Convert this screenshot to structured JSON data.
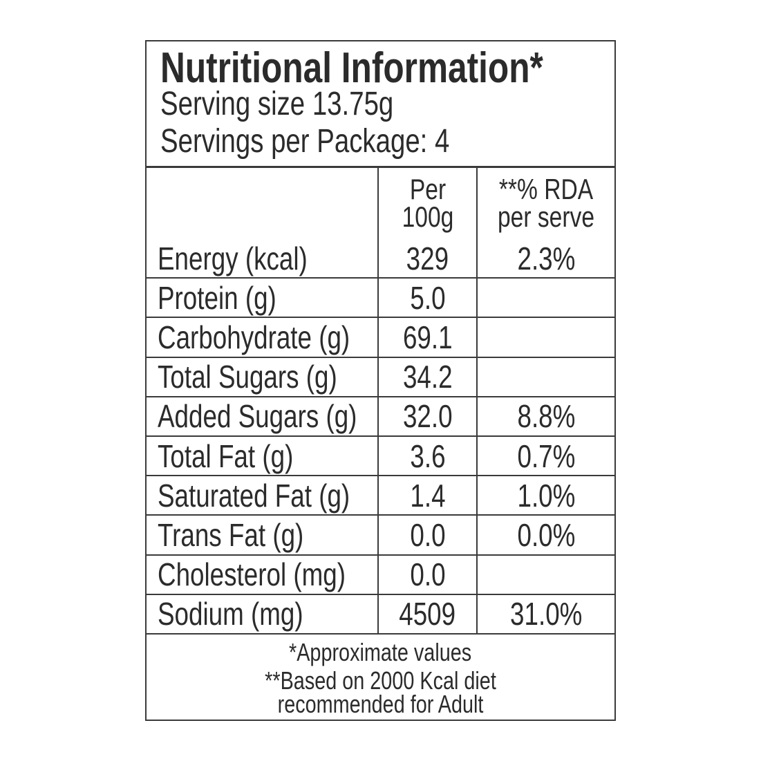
{
  "header": {
    "title": "Nutritional Information*",
    "serving_size": "Serving size 13.75g",
    "servings": "Servings per Package: 4"
  },
  "table": {
    "columns": [
      "Per 100g",
      "**% RDA per serve"
    ],
    "rows": [
      [
        "Energy (kcal)",
        "329",
        "2.3%"
      ],
      [
        "Protein (g)",
        "5.0",
        null
      ],
      [
        "Carbohydrate (g)",
        "69.1",
        null
      ],
      [
        "Total Sugars (g)",
        "34.2",
        null
      ],
      [
        "Added Sugars (g)",
        "32.0",
        "8.8%"
      ],
      [
        "Total Fat (g)",
        "3.6",
        "0.7%"
      ],
      [
        "Saturated Fat (g)",
        "1.4",
        "1.0%"
      ],
      [
        "Trans Fat (g)",
        "0.0",
        "0.0%"
      ],
      [
        "Cholesterol (mg)",
        "0.0",
        null
      ],
      [
        "Sodium (mg)",
        "4509",
        "31.0%"
      ]
    ]
  },
  "footer": {
    "note1": "*Approximate values",
    "note2": "**Based on 2000 Kcal diet recommended for Adult"
  }
}
